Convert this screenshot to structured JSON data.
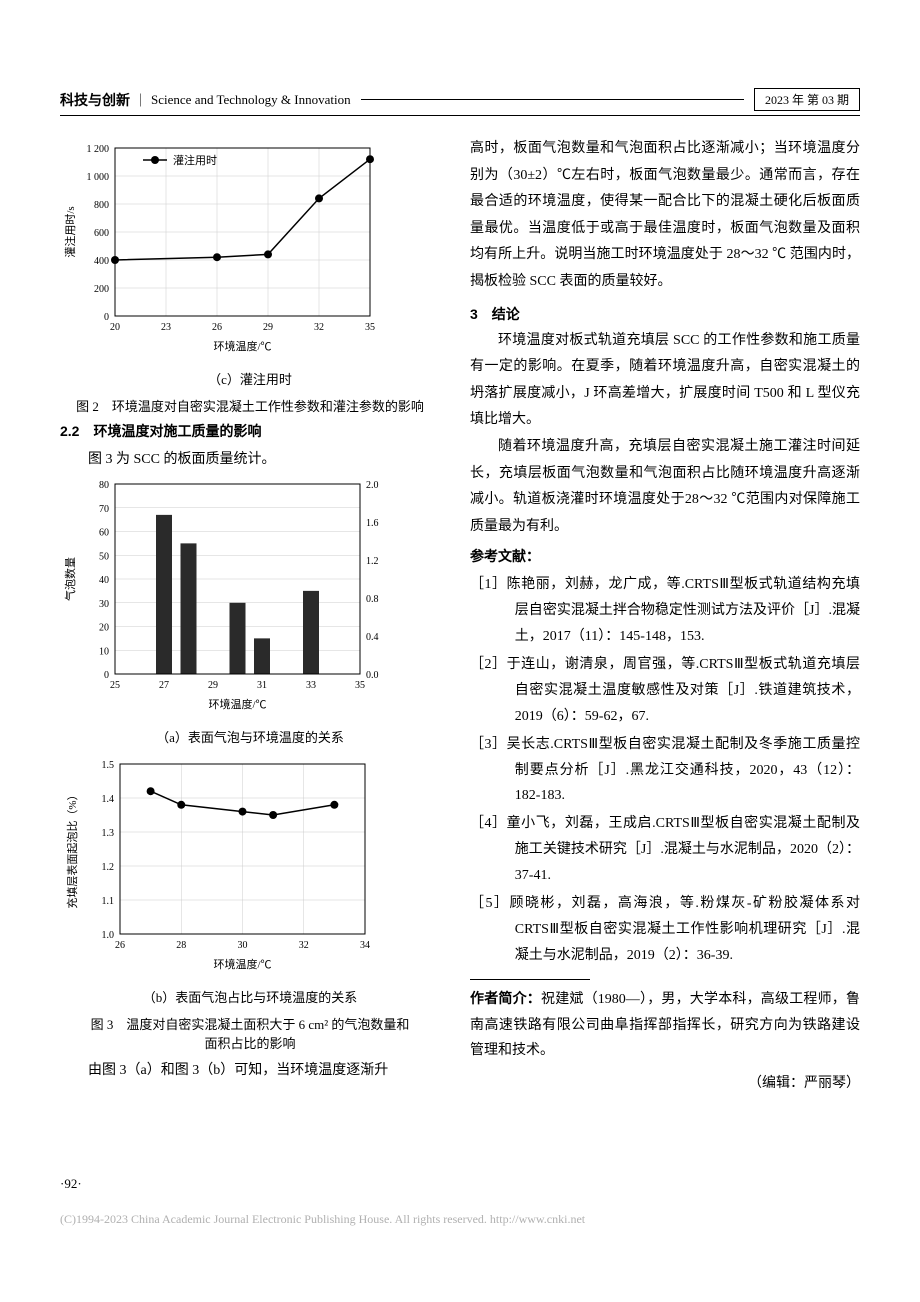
{
  "header": {
    "journal_cn": "科技与创新",
    "journal_en": "Science and Technology & Innovation",
    "issue": "2023 年 第 03 期"
  },
  "fig2c": {
    "type": "line",
    "caption": "（c）灌注用时",
    "x_label": "环境温度/℃",
    "y_label": "灌注用时/s",
    "legend": "灌注用时",
    "x_ticks": [
      20,
      23,
      26,
      29,
      32,
      35
    ],
    "y_ticks": [
      0,
      200,
      400,
      600,
      800,
      1000,
      1200
    ],
    "points": [
      [
        20,
        400
      ],
      [
        26,
        420
      ],
      [
        29,
        440
      ],
      [
        32,
        840
      ],
      [
        35,
        1120
      ]
    ],
    "line_color": "#000000",
    "marker_color": "#000000",
    "marker_style": "circle_filled",
    "grid_color": "#cccccc",
    "background": "#ffffff"
  },
  "fig2_caption": "图 2　环境温度对自密实混凝土工作性参数和灌注参数的影响",
  "section22": "2.2　环境温度对施工质量的影响",
  "fig3_intro": "图 3 为 SCC 的板面质量统计。",
  "fig3a": {
    "type": "bar",
    "caption": "（a）表面气泡与环境温度的关系",
    "x_label": "环境温度/℃",
    "y_left_label": "气泡数量",
    "x_ticks": [
      25,
      27,
      29,
      31,
      33,
      35
    ],
    "y_left_ticks": [
      0,
      10,
      20,
      30,
      40,
      50,
      60,
      70,
      80
    ],
    "y_right_ticks": [
      0.0,
      0.4,
      0.8,
      1.2,
      1.6,
      2.0
    ],
    "bars": [
      {
        "x": 27,
        "h": 67
      },
      {
        "x": 28,
        "h": 55
      },
      {
        "x": 30,
        "h": 30
      },
      {
        "x": 31,
        "h": 15
      },
      {
        "x": 33,
        "h": 35
      }
    ],
    "bar_color": "#2a2a2a",
    "grid_color": "#cccccc",
    "background": "#ffffff"
  },
  "fig3b": {
    "type": "line",
    "caption": "（b）表面气泡占比与环境温度的关系",
    "x_label": "环境温度/℃",
    "y_label": "充填层表面起泡比（%）",
    "x_ticks": [
      26,
      28,
      30,
      32,
      34
    ],
    "y_ticks": [
      1.0,
      1.1,
      1.2,
      1.3,
      1.4,
      1.5
    ],
    "points": [
      [
        27,
        1.42
      ],
      [
        28,
        1.38
      ],
      [
        30,
        1.36
      ],
      [
        31,
        1.35
      ],
      [
        33,
        1.38
      ]
    ],
    "line_color": "#000000",
    "marker_color": "#000000",
    "grid_color": "#cccccc",
    "background": "#ffffff"
  },
  "fig3_caption_l1": "图 3　温度对自密实混凝土面积大于 6 cm² 的气泡数量和",
  "fig3_caption_l2": "面积占比的影响",
  "left_tail": "由图 3（a）和图 3（b）可知，当环境温度逐渐升",
  "right_paras": [
    "高时，板面气泡数量和气泡面积占比逐渐减小；当环境温度分别为（30±2）℃左右时，板面气泡数量最少。通常而言，存在最合适的环境温度，使得某一配合比下的混凝土硬化后板面质量最优。当温度低于或高于最佳温度时，板面气泡数量及面积均有所上升。说明当施工时环境温度处于 28～32 ℃ 范围内时，揭板检验 SCC 表面的质量较好。"
  ],
  "section3": "3　结论",
  "conclusion_paras": [
    "环境温度对板式轨道充填层 SCC 的工作性参数和施工质量有一定的影响。在夏季，随着环境温度升高，自密实混凝土的坍落扩展度减小，J 环高差增大，扩展度时间 T500 和 L 型仪充填比增大。",
    "随着环境温度升高，充填层自密实混凝土施工灌注时间延长，充填层板面气泡数量和气泡面积占比随环境温度升高逐渐减小。轨道板浇灌时环境温度处于28～32 ℃范围内对保障施工质量最为有利。"
  ],
  "ref_heading": "参考文献：",
  "references": [
    "［1］陈艳丽，刘赫，龙广成，等.CRTSⅢ型板式轨道结构充填层自密实混凝土拌合物稳定性测试方法及评价［J］.混凝土，2017（11）：145-148，153.",
    "［2］于连山，谢清泉，周官强，等.CRTSⅢ型板式轨道充填层自密实混凝土温度敏感性及对策［J］.铁道建筑技术，2019（6）：59-62，67.",
    "［3］吴长志.CRTSⅢ型板自密实混凝土配制及冬季施工质量控制要点分析［J］.黑龙江交通科技，2020，43（12）：182-183.",
    "［4］童小飞，刘磊，王成启.CRTSⅢ型板自密实混凝土配制及施工关键技术研究［J］.混凝土与水泥制品，2020（2）：37-41.",
    "［5］顾晓彬，刘磊，高海浪，等.粉煤灰-矿粉胶凝体系对 CRTSⅢ型板自密实混凝土工作性影响机理研究［J］.混凝土与水泥制品，2019（2）：36-39."
  ],
  "author_info_label": "作者简介：",
  "author_info": "祝建斌（1980—），男，大学本科，高级工程师，鲁南高速铁路有限公司曲阜指挥部指挥长，研究方向为铁路建设管理和技术。",
  "editor": "（编辑：严丽琴）",
  "page_number": "·92·",
  "copyright": "(C)1994-2023 China Academic Journal Electronic Publishing House. All rights reserved.    http://www.cnki.net"
}
